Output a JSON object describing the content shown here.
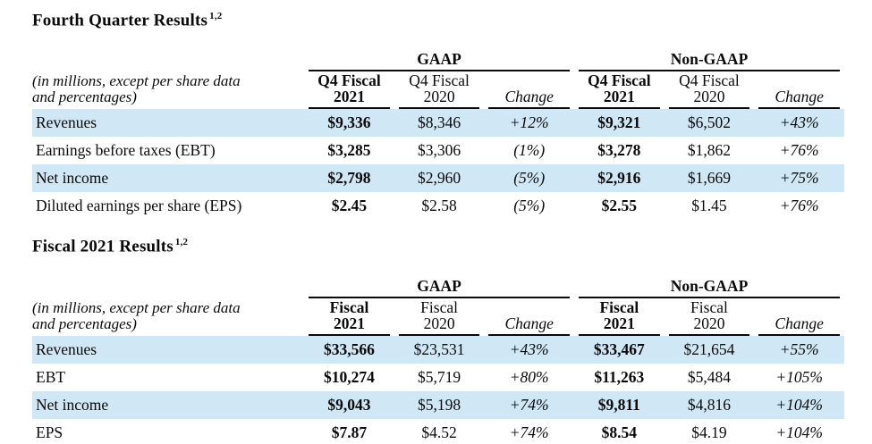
{
  "styles": {
    "stripe_color": "#d0e7f6",
    "rule_color": "#0a0a0a",
    "text_color": "#0a0a0a"
  },
  "tables": [
    {
      "title": "Fourth Quarter Results",
      "title_superscript": "1,2",
      "note_line1": "(in millions, except per share data",
      "note_line2": "and percentages)",
      "groups": [
        {
          "label": "GAAP"
        },
        {
          "label": "Non-GAAP"
        }
      ],
      "columns": [
        {
          "line1": "Q4 Fiscal",
          "line2": "2021"
        },
        {
          "line1": "Q4 Fiscal",
          "line2": "2020"
        },
        {
          "line1": "Change"
        },
        {
          "line1": "Q4 Fiscal",
          "line2": "2021"
        },
        {
          "line1": "Q4 Fiscal",
          "line2": "2020"
        },
        {
          "line1": "Change"
        }
      ],
      "rows": [
        {
          "label": "Revenues",
          "values": [
            "$9,336",
            "$8,346",
            "+12%",
            "$9,321",
            "$6,502",
            "+43%"
          ]
        },
        {
          "label": "Earnings before taxes (EBT)",
          "values": [
            "$3,285",
            "$3,306",
            "(1%)",
            "$3,278",
            "$1,862",
            "+76%"
          ]
        },
        {
          "label": "Net income",
          "values": [
            "$2,798",
            "$2,960",
            "(5%)",
            "$2,916",
            "$1,669",
            "+75%"
          ]
        },
        {
          "label": "Diluted earnings per share (EPS)",
          "values": [
            "$2.45",
            "$2.58",
            "(5%)",
            "$2.55",
            "$1.45",
            "+76%"
          ]
        }
      ]
    },
    {
      "title": "Fiscal 2021 Results",
      "title_superscript": "1,2",
      "note_line1": "(in millions, except per share data",
      "note_line2": "and percentages)",
      "groups": [
        {
          "label": "GAAP"
        },
        {
          "label": "Non-GAAP"
        }
      ],
      "columns": [
        {
          "line1": "Fiscal",
          "line2": "2021"
        },
        {
          "line1": "Fiscal",
          "line2": "2020"
        },
        {
          "line1": "Change"
        },
        {
          "line1": "Fiscal",
          "line2": "2021"
        },
        {
          "line1": "Fiscal",
          "line2": "2020"
        },
        {
          "line1": "Change"
        }
      ],
      "rows": [
        {
          "label": "Revenues",
          "values": [
            "$33,566",
            "$23,531",
            "+43%",
            "$33,467",
            "$21,654",
            "+55%"
          ]
        },
        {
          "label": "EBT",
          "values": [
            "$10,274",
            "$5,719",
            "+80%",
            "$11,263",
            "$5,484",
            "+105%"
          ]
        },
        {
          "label": "Net income",
          "values": [
            "$9,043",
            "$5,198",
            "+74%",
            "$9,811",
            "$4,816",
            "+104%"
          ]
        },
        {
          "label": "EPS",
          "values": [
            "$7.87",
            "$4.52",
            "+74%",
            "$8.54",
            "$4.19",
            "+104%"
          ]
        }
      ]
    }
  ]
}
